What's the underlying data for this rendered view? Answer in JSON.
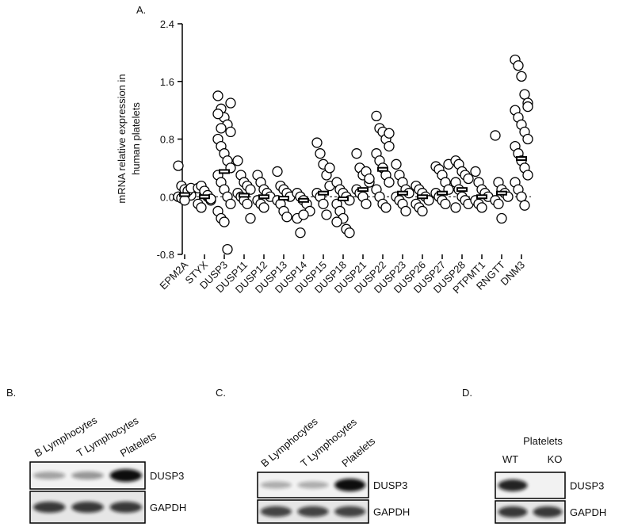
{
  "chart_data": {
    "type": "strip",
    "title": "A.",
    "ylabel": [
      "mRNA relative expression in",
      "human platelets"
    ],
    "categories": [
      "EPM2A",
      "STYX",
      "DUSP3",
      "DUSP11",
      "DUSP12",
      "DUSP13",
      "DUSP14",
      "DUSP15",
      "DUSP18",
      "DUSP21",
      "DUSP22",
      "DUSP23",
      "DUSP26",
      "DUSP27",
      "DUSP28",
      "PTPMT1",
      "RNGTT",
      "DNM3"
    ],
    "values": [
      [
        0.43,
        0.15,
        0.1,
        0.05,
        0.02,
        0,
        -0.02,
        -0.05,
        0.08,
        0.12
      ],
      [
        0.12,
        0.15,
        0.05,
        0,
        -0.05,
        -0.1,
        -0.15,
        0.08,
        0.02,
        -0.03
      ],
      [
        1.4,
        1.22,
        1.1,
        1.0,
        0.9,
        0.8,
        0.7,
        0.6,
        0.5,
        0.4,
        0.3,
        0.2,
        0.1,
        0,
        -0.1,
        -0.2,
        -0.3,
        -0.35,
        -0.73,
        1.3,
        1.15,
        0.95
      ],
      [
        0.5,
        0.3,
        0.2,
        0.15,
        0.1,
        0.05,
        0,
        -0.05,
        -0.1,
        -0.3
      ],
      [
        0.3,
        0.2,
        0.1,
        0.05,
        0,
        -0.05,
        -0.1,
        -0.15
      ],
      [
        0.35,
        0.15,
        0.1,
        0.05,
        0,
        -0.05,
        -0.1,
        -0.2,
        -0.28
      ],
      [
        0.05,
        0,
        -0.05,
        -0.1,
        -0.2,
        -0.3,
        -0.5,
        -0.25
      ],
      [
        0.75,
        0.6,
        0.45,
        0.3,
        0.15,
        0.05,
        0,
        -0.1,
        -0.25,
        0.4
      ],
      [
        0.2,
        0.1,
        0.05,
        0,
        -0.05,
        -0.1,
        -0.2,
        -0.3,
        -0.45,
        -0.5,
        -0.35
      ],
      [
        0.6,
        0.4,
        0.3,
        0.35,
        0.2,
        0.1,
        0.05,
        0,
        -0.1,
        0.25
      ],
      [
        1.12,
        0.95,
        0.9,
        0.8,
        0.7,
        0.6,
        0.5,
        0.4,
        0.3,
        0.2,
        0.1,
        0,
        -0.1,
        -0.15,
        0.88
      ],
      [
        0.45,
        0.3,
        0.2,
        0.1,
        0.05,
        0,
        -0.05,
        -0.1,
        -0.2
      ],
      [
        0.15,
        0.1,
        0.05,
        0,
        -0.05,
        -0.1,
        -0.15,
        -0.2
      ],
      [
        0.42,
        0.38,
        0.3,
        0.2,
        0.1,
        0.05,
        0,
        -0.05,
        -0.1,
        0.45
      ],
      [
        0.5,
        0.45,
        0.35,
        0.3,
        0.25,
        0.2,
        0.1,
        0,
        -0.05,
        -0.1,
        -0.15
      ],
      [
        0.35,
        0.2,
        0.1,
        0.05,
        0,
        -0.05,
        -0.1,
        -0.15
      ],
      [
        0.85,
        0.2,
        0.1,
        0.05,
        0,
        -0.05,
        -0.1,
        -0.3
      ],
      [
        1.9,
        1.82,
        1.67,
        1.42,
        1.3,
        1.2,
        1.1,
        1.0,
        0.9,
        0.8,
        0.7,
        0.6,
        0.5,
        0.4,
        0.3,
        0.2,
        0.1,
        0,
        -0.12,
        1.25
      ]
    ],
    "means": [
      0.03,
      0,
      0.35,
      0.02,
      0,
      -0.02,
      -0.05,
      0.05,
      -0.03,
      0.1,
      0.38,
      0.05,
      0,
      0.05,
      0.1,
      0,
      0.05,
      0.53
    ],
    "ylim": [
      -0.8,
      2.4
    ],
    "yticks": [
      -0.8,
      {
        "value": 0,
        "label": "0.0"
      },
      0.8,
      1.6,
      2.4
    ],
    "marker": {
      "stroke": "#000000",
      "fill": "#ffffff"
    }
  },
  "blots": [
    {
      "label": "B.",
      "lanes": [
        "B Lymphocytes",
        "T Lymphocytes",
        "Platelets"
      ],
      "rows": [
        "DUSP3",
        "GAPDH"
      ]
    },
    {
      "label": "C.",
      "lanes": [
        "B Lymphocytes",
        "T Lymphocytes",
        "Platelets"
      ],
      "rows": [
        "DUSP3",
        "GAPDH"
      ]
    },
    {
      "label": "D.",
      "group": "Platelets",
      "lanes": [
        "WT",
        "KO"
      ],
      "rows": [
        "DUSP3",
        "GAPDH"
      ]
    }
  ]
}
